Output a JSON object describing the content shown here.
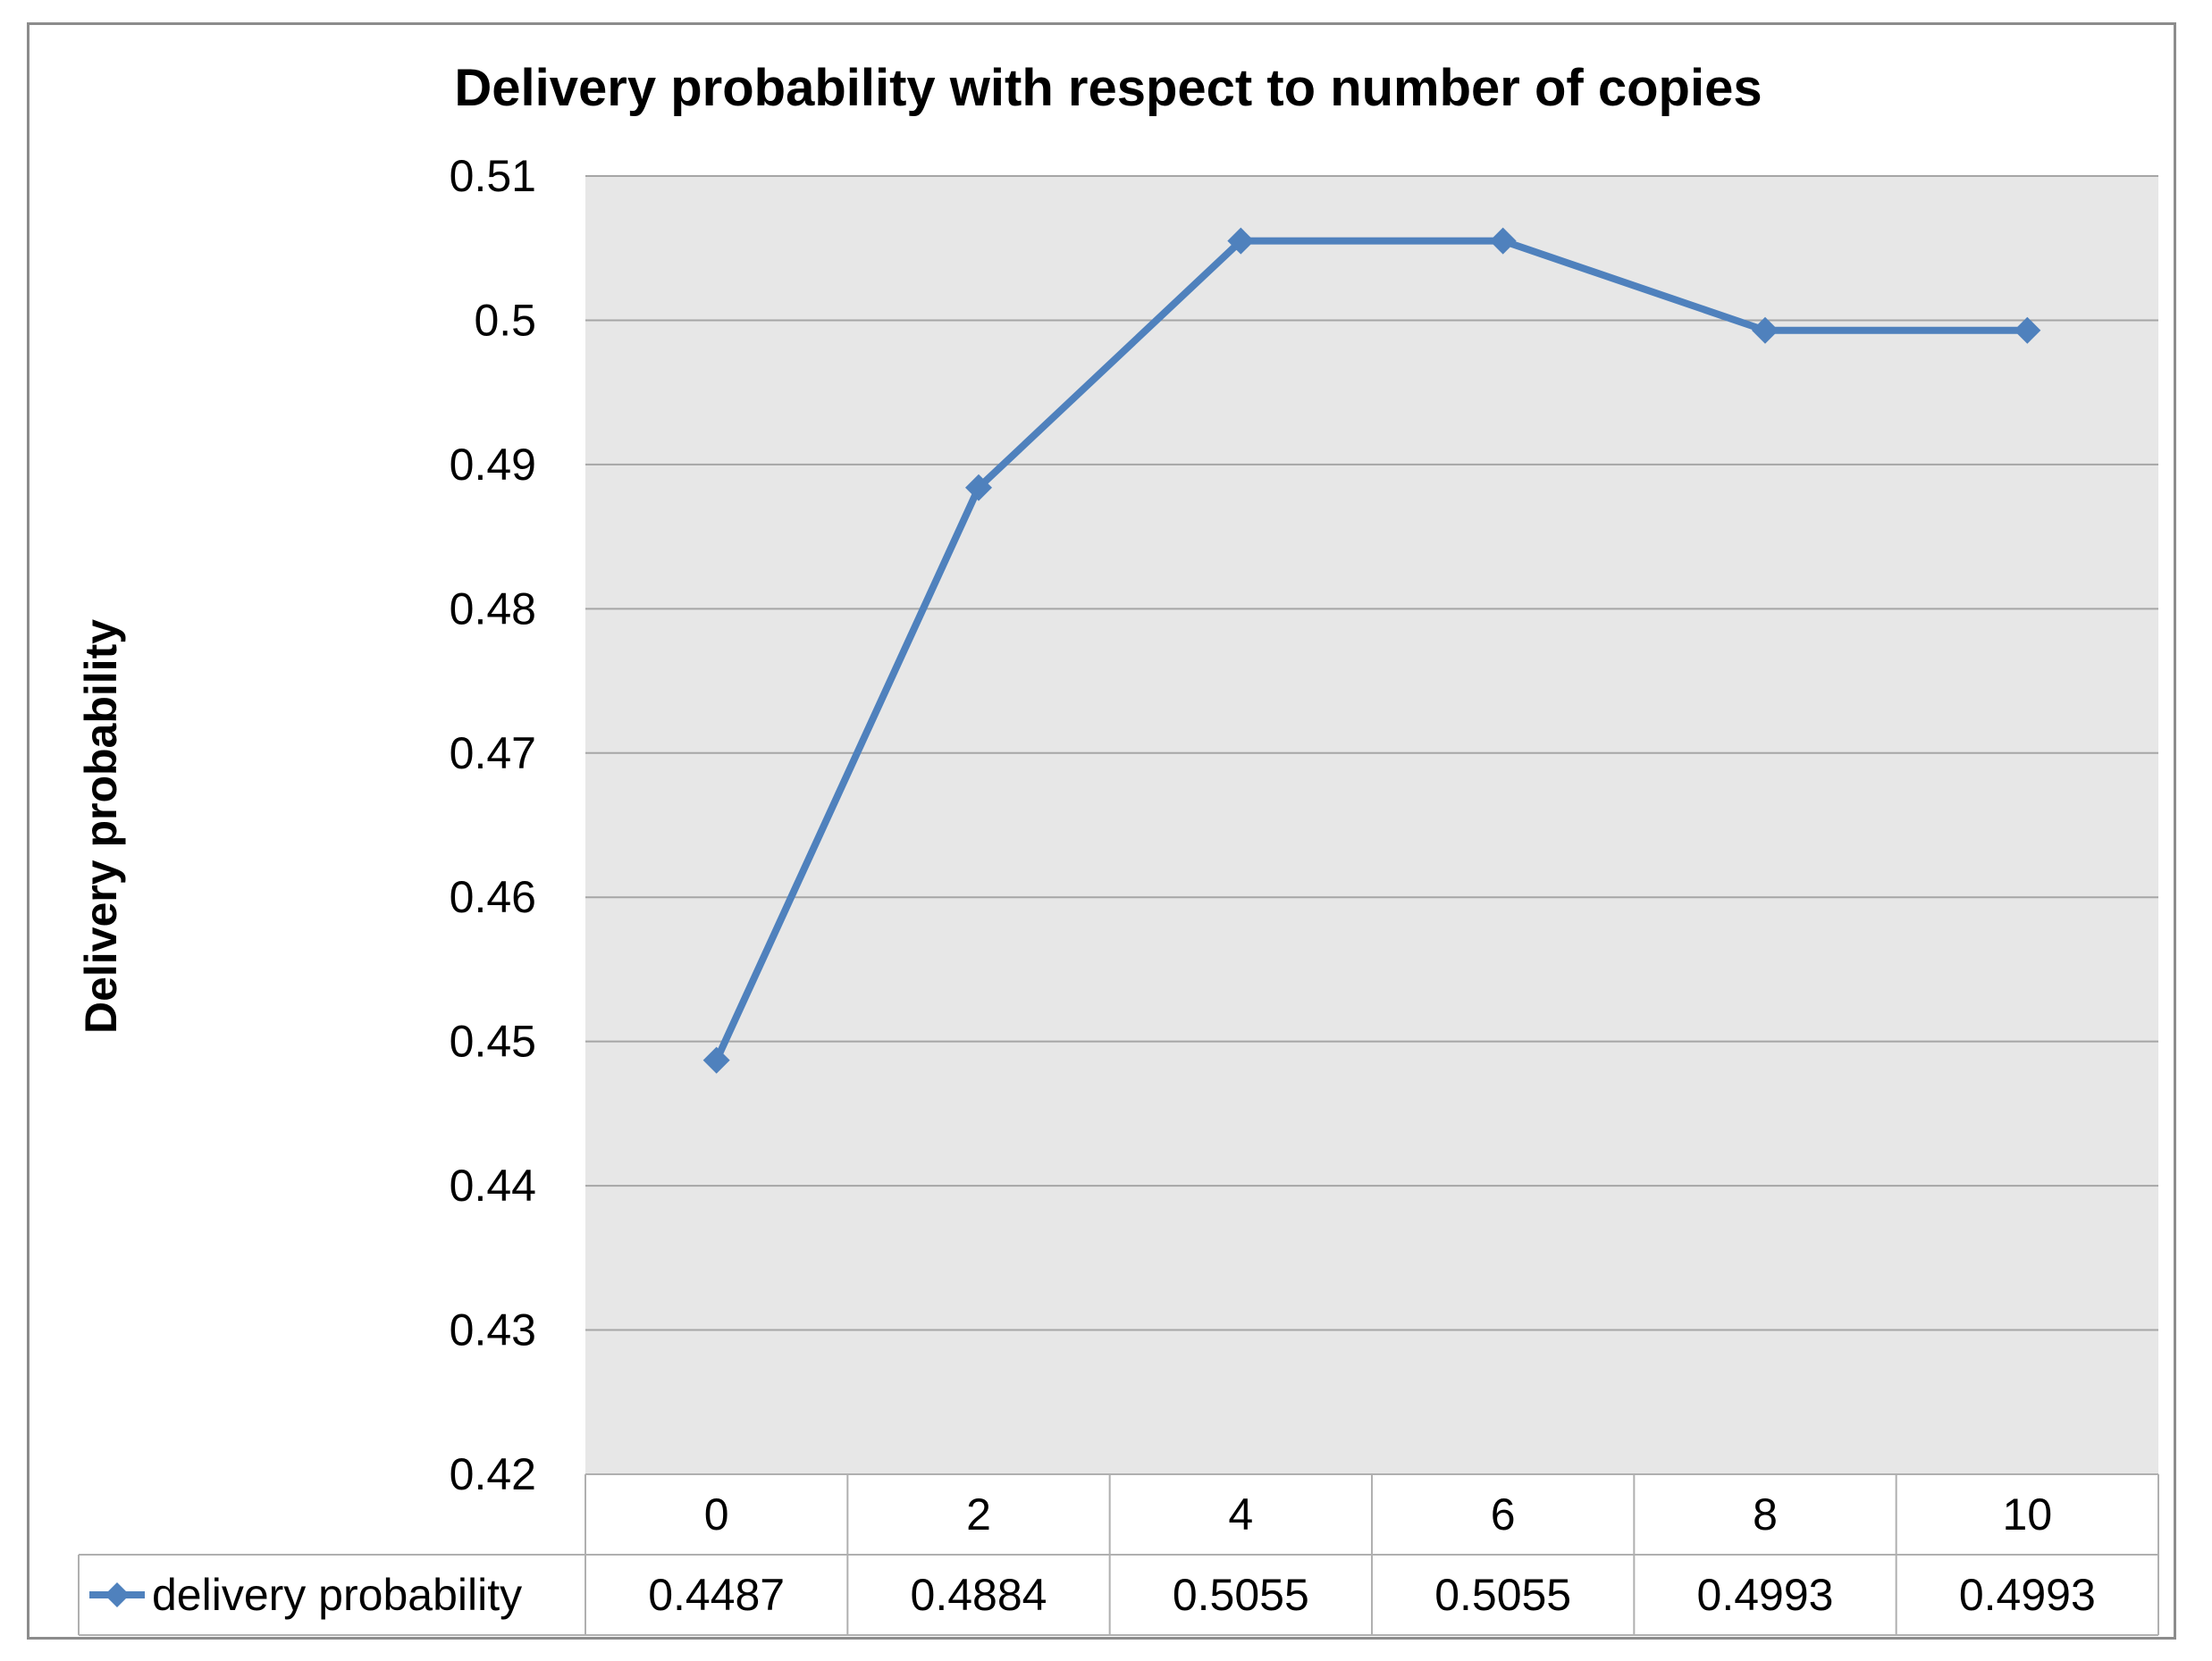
{
  "chart_data": {
    "type": "line",
    "title": "Delivery probability with respect to number of copies",
    "xlabel": "",
    "ylabel": "Delivery probability",
    "categories": [
      "0",
      "2",
      "4",
      "6",
      "8",
      "10"
    ],
    "series": [
      {
        "name": "delivery probability",
        "values": [
          0.4487,
          0.4884,
          0.5055,
          0.5055,
          0.4993,
          0.4993
        ],
        "value_labels": [
          "0.4487",
          "0.4884",
          "0.5055",
          "0.5055",
          "0.4993",
          "0.4993"
        ],
        "color": "#4f81bd",
        "marker": "diamond"
      }
    ],
    "ylim": [
      0.42,
      0.51
    ],
    "yticks": [
      "0.42",
      "0.43",
      "0.44",
      "0.45",
      "0.46",
      "0.47",
      "0.48",
      "0.49",
      "0.5",
      "0.51"
    ],
    "grid": true,
    "legend": "data-table",
    "plot_background": "#e7e7e7",
    "gridline_color": "#a6a6a6"
  }
}
